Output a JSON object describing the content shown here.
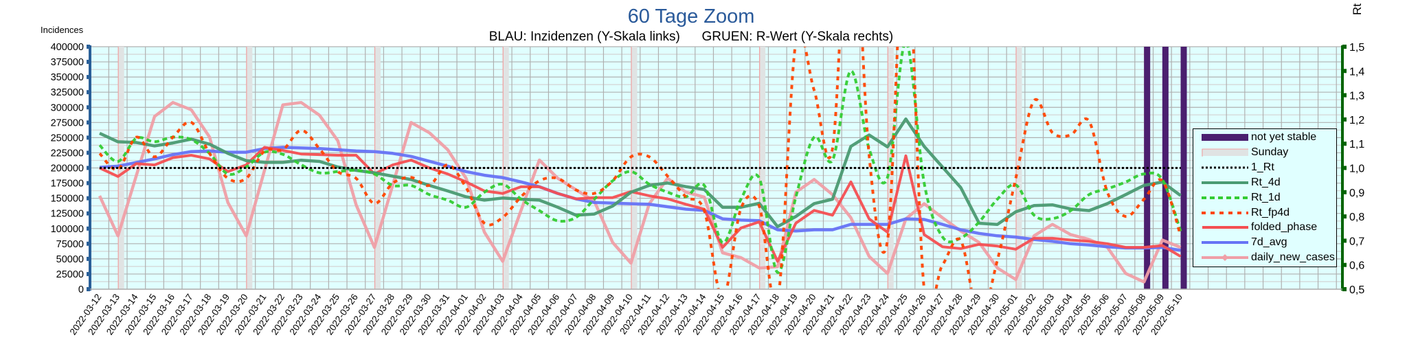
{
  "chart_data": {
    "type": "line",
    "title": "60 Tage Zoom",
    "subtitle": "BLAU: Inzidenzen (Y-Skala links)      GRUEN: R-Wert (Y-Skala rechts)",
    "ylabel": "Incidences",
    "y2label": "Rt",
    "ylim": [
      0,
      400000
    ],
    "y2lim": [
      0.5,
      1.5
    ],
    "yticks": [
      "0",
      "25000",
      "50000",
      "75000",
      "100000",
      "125000",
      "150000",
      "175000",
      "200000",
      "225000",
      "250000",
      "275000",
      "300000",
      "325000",
      "350000",
      "375000",
      "400000"
    ],
    "y2ticks": [
      "0,5",
      "0,6",
      "0,7",
      "0,8",
      "0,9",
      "1,0",
      "1,1",
      "1,2",
      "1,3",
      "1,4",
      "1,5"
    ],
    "grid": true,
    "legend_position": "right",
    "categories": [
      "2022-03-12",
      "2022-03-13",
      "2022-03-14",
      "2022-03-15",
      "2022-03-16",
      "2022-03-17",
      "2022-03-18",
      "2022-03-19",
      "2022-03-20",
      "2022-03-21",
      "2022-03-22",
      "2022-03-23",
      "2022-03-24",
      "2022-03-25",
      "2022-03-26",
      "2022-03-27",
      "2022-03-28",
      "2022-03-29",
      "2022-03-30",
      "2022-03-31",
      "2022-04-01",
      "2022-04-02",
      "2022-04-03",
      "2022-04-04",
      "2022-04-05",
      "2022-04-06",
      "2022-04-07",
      "2022-04-08",
      "2022-04-09",
      "2022-04-10",
      "2022-04-11",
      "2022-04-12",
      "2022-04-13",
      "2022-04-14",
      "2022-04-15",
      "2022-04-16",
      "2022-04-17",
      "2022-04-18",
      "2022-04-19",
      "2022-04-20",
      "2022-04-21",
      "2022-04-22",
      "2022-04-23",
      "2022-04-24",
      "2022-04-25",
      "2022-04-26",
      "2022-04-27",
      "2022-04-28",
      "2022-04-29",
      "2022-04-30",
      "2022-05-01",
      "2022-05-02",
      "2022-05-03",
      "2022-05-04",
      "2022-05-05",
      "2022-05-06",
      "2022-05-07",
      "2022-05-08",
      "2022-05-09",
      "2022-05-10"
    ],
    "sundays": [
      "2022-03-13",
      "2022-03-20",
      "2022-03-27",
      "2022-04-03",
      "2022-04-10",
      "2022-04-17",
      "2022-04-24",
      "2022-05-01",
      "2022-05-08"
    ],
    "not_yet_stable": [
      "2022-05-08",
      "2022-05-09",
      "2022-05-10"
    ],
    "reference_line": {
      "name": "1_Rt",
      "value": 1.0,
      "axis": "right"
    },
    "series": [
      {
        "name": "Rt_4d",
        "axis": "right",
        "color": "#4a9a72",
        "values": [
          1.143,
          1.108,
          1.105,
          1.091,
          1.103,
          1.119,
          1.098,
          1.06,
          1.03,
          1.023,
          1.023,
          1.032,
          1.027,
          1.004,
          0.99,
          0.98,
          0.966,
          0.952,
          0.928,
          0.905,
          0.881,
          0.867,
          0.876,
          0.871,
          0.867,
          0.838,
          0.805,
          0.81,
          0.843,
          0.9,
          0.928,
          0.938,
          0.923,
          0.911,
          0.838,
          0.838,
          0.854,
          0.758,
          0.8,
          0.853,
          0.871,
          1.089,
          1.136,
          1.087,
          1.202,
          1.089,
          1.004,
          0.919,
          0.772,
          0.767,
          0.819,
          0.845,
          0.848,
          0.831,
          0.824,
          0.853,
          0.89,
          0.928,
          0.942,
          0.886
        ]
      },
      {
        "name": "Rt_1d",
        "axis": "right",
        "color": "#33cc33",
        "values": [
          1.094,
          1.027,
          1.122,
          1.108,
          1.127,
          1.117,
          1.06,
          0.975,
          1.004,
          1.065,
          1.056,
          1.013,
          0.98,
          0.985,
          0.99,
          0.975,
          0.928,
          0.928,
          0.89,
          0.867,
          0.838,
          0.9,
          0.933,
          0.871,
          0.824,
          0.782,
          0.796,
          0.871,
          0.947,
          0.985,
          0.933,
          0.9,
          0.881,
          0.928,
          0.692,
          0.871,
          0.958,
          0.569,
          0.881,
          1.127,
          1.032,
          1.4,
          1.079,
          0.961,
          1.52,
          0.938,
          0.716,
          0.711,
          0.777,
          0.871,
          0.93,
          0.805,
          0.791,
          0.824,
          0.89,
          0.914,
          0.942,
          0.975,
          0.952,
          0.739
        ]
      },
      {
        "name": "Rt_fp4d",
        "axis": "right",
        "color": "#ff4500",
        "values": [
          1.06,
          0.994,
          1.127,
          1.046,
          1.127,
          1.188,
          1.06,
          0.957,
          0.957,
          1.07,
          1.075,
          1.155,
          1.079,
          0.985,
          0.957,
          0.853,
          0.937,
          0.961,
          0.928,
          1.013,
          0.919,
          0.772,
          0.796,
          0.881,
          0.947,
          0.957,
          0.909,
          0.895,
          0.947,
          1.046,
          1.046,
          0.966,
          0.881,
          0.824,
          0.46,
          0.833,
          0.843,
          0.45,
          1.52,
          1.32,
          1.08,
          2.2,
          1.05,
          0.7,
          2.0,
          0.5,
          0.6,
          0.7,
          0.38,
          0.62,
          0.957,
          1.278,
          1.146,
          1.136,
          1.193,
          0.9,
          0.8,
          0.871,
          0.947,
          0.72
        ]
      },
      {
        "name": "folded_phase",
        "axis": "left",
        "color": "#f44f52",
        "values": [
          200000,
          186000,
          207000,
          205000,
          217000,
          221000,
          215000,
          194000,
          205000,
          234000,
          229000,
          223000,
          222000,
          221000,
          221000,
          190000,
          205000,
          213000,
          200000,
          190000,
          177000,
          162000,
          158000,
          169000,
          169000,
          158000,
          149000,
          151000,
          151000,
          161000,
          154000,
          149000,
          140000,
          132000,
          69000,
          101000,
          111000,
          46000,
          109000,
          130000,
          122000,
          177000,
          116000,
          94000,
          220000,
          90000,
          70000,
          67000,
          74000,
          71000,
          66000,
          84000,
          84000,
          81000,
          79000,
          75000,
          69000,
          69000,
          72000,
          54000
        ]
      },
      {
        "name": "7d_avg",
        "axis": "left",
        "color": "#6673f5",
        "values": [
          201000,
          203000,
          209000,
          215000,
          222000,
          227000,
          228000,
          226000,
          226000,
          232000,
          234000,
          233000,
          232000,
          230000,
          228000,
          227000,
          224000,
          219000,
          211000,
          203000,
          194000,
          188000,
          184000,
          177000,
          169000,
          158000,
          149000,
          143000,
          142000,
          141000,
          140000,
          136000,
          132000,
          130000,
          116000,
          114000,
          113000,
          98000,
          96000,
          98000,
          98000,
          107000,
          107000,
          107000,
          116000,
          115000,
          107000,
          98000,
          92000,
          88000,
          86000,
          82000,
          79000,
          75000,
          73000,
          70000,
          68000,
          68000,
          69000,
          64000
        ]
      },
      {
        "name": "daily_new_cases",
        "axis": "left",
        "color": "#ef9fa7",
        "values": [
          154000,
          88000,
          187000,
          285000,
          308000,
          296000,
          251000,
          143000,
          88000,
          196000,
          304000,
          308000,
          287000,
          245000,
          139000,
          69000,
          172000,
          275000,
          258000,
          230000,
          183000,
          94000,
          46000,
          130000,
          213000,
          183000,
          164000,
          145000,
          77000,
          43000,
          141000,
          183000,
          160000,
          152000,
          60000,
          52000,
          35000,
          37000,
          160000,
          181000,
          156000,
          118000,
          54000,
          26000,
          116000,
          141000,
          118000,
          96000,
          77000,
          35000,
          16000,
          88000,
          107000,
          90000,
          82000,
          69000,
          26000,
          12000,
          81000,
          69000
        ]
      }
    ],
    "legend": [
      "not yet stable",
      "Sunday",
      "1_Rt",
      "Rt_4d",
      "Rt_1d",
      "Rt_fp4d",
      "folded_phase",
      "7d_avg",
      "daily_new_cases"
    ],
    "colors": {
      "plot_bg": "#e0ffff",
      "left_axis": "#2a6099",
      "right_axis": "#006400",
      "not_yet_stable": "#4b1f6f",
      "sunday_fill": "#e0e3e3",
      "sunday_edge": "#f0a0a0",
      "title": "#2a5a9a"
    }
  }
}
